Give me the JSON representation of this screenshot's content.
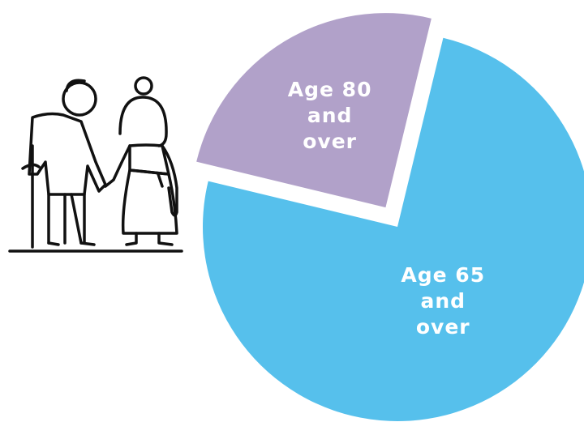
{
  "chart_data": {
    "type": "pie",
    "categories": [
      "Age 65 and over",
      "Age 80 and over"
    ],
    "values": [
      75,
      25
    ],
    "colors": [
      "#56c0ec",
      "#b1a1c9"
    ]
  }
}
